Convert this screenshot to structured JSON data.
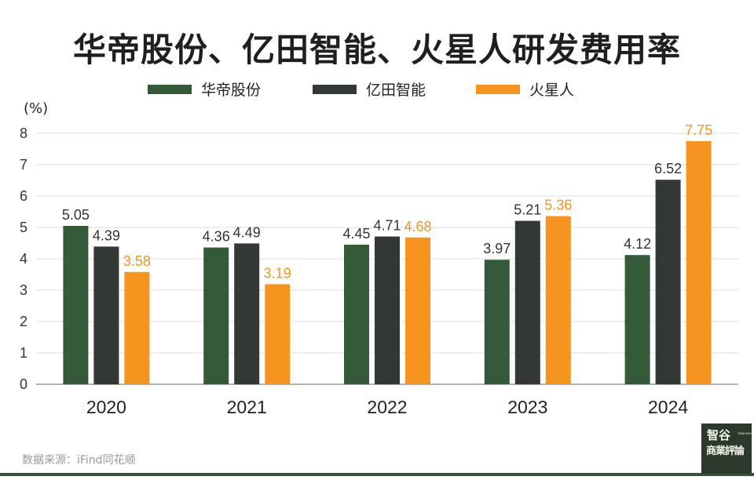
{
  "chart_data": {
    "type": "bar",
    "title": "华帝股份、亿田智能、火星人研发费用率",
    "unit_label": "(%)",
    "categories": [
      "2020",
      "2021",
      "2022",
      "2023",
      "2024"
    ],
    "series": [
      {
        "name": "华帝股份",
        "color": "#355a3a",
        "label_color": "#333333",
        "values": [
          5.05,
          4.36,
          4.45,
          3.97,
          4.12
        ]
      },
      {
        "name": "亿田智能",
        "color": "#333834",
        "label_color": "#333333",
        "values": [
          4.39,
          4.49,
          4.71,
          5.21,
          6.52
        ]
      },
      {
        "name": "火星人",
        "color": "#f5951f",
        "label_color": "#f5951f",
        "values": [
          3.58,
          3.19,
          4.68,
          5.36,
          7.75
        ]
      }
    ],
    "y_ticks": [
      "0",
      "1",
      "2",
      "3",
      "4",
      "5",
      "6",
      "7",
      "8"
    ],
    "ylim": [
      0,
      8
    ],
    "grid": true,
    "legend_position": "top"
  },
  "source": "数据来源：iFind同花顺",
  "logo": {
    "line1": "智谷",
    "line2": "商業評論",
    "tag": "TRENDS"
  }
}
